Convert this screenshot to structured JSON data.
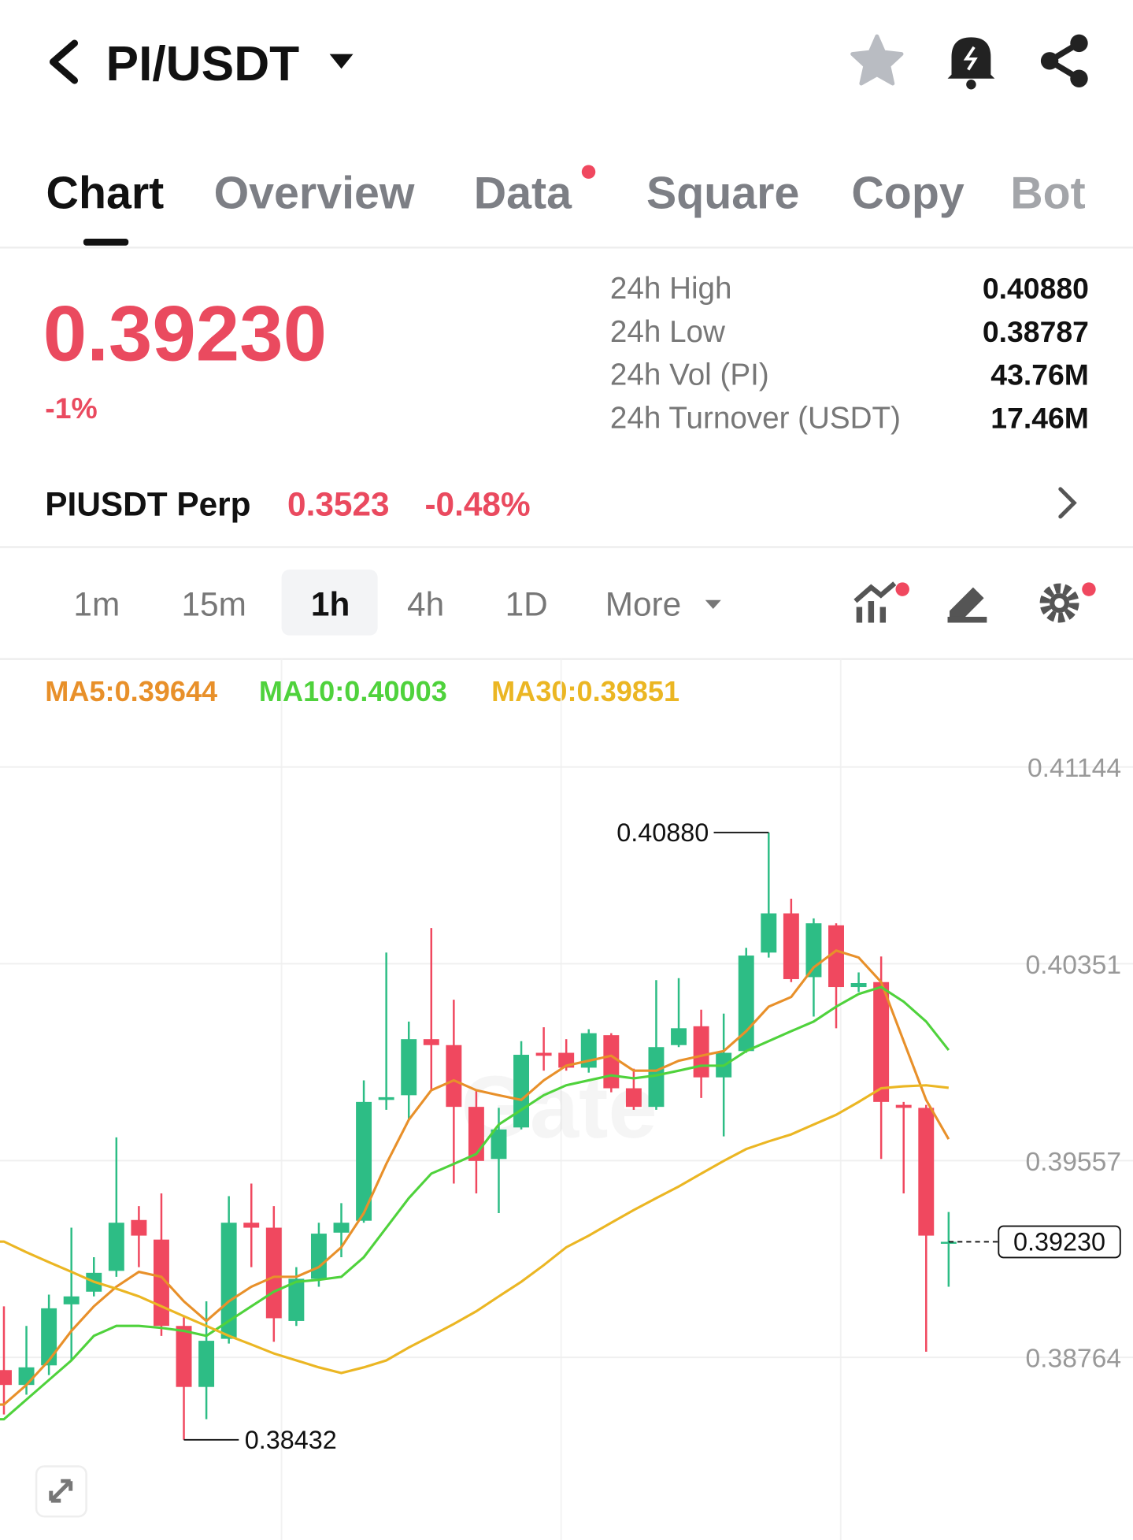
{
  "header": {
    "pair": "PI/USDT"
  },
  "tabs": [
    "Chart",
    "Overview",
    "Data",
    "Square",
    "Copy",
    "Bot"
  ],
  "ticker": {
    "price": "0.39230",
    "change": "-1%",
    "stats": [
      [
        "24h High",
        "0.40880"
      ],
      [
        "24h Low",
        "0.38787"
      ],
      [
        "24h Vol (PI)",
        "43.76M"
      ],
      [
        "24h Turnover (USDT)",
        "17.46M"
      ]
    ]
  },
  "perp": {
    "name": "PIUSDT Perp",
    "price": "0.3523",
    "change": "-0.48%"
  },
  "intervals": [
    "1m",
    "15m",
    "1h",
    "4h",
    "1D",
    "More"
  ],
  "watermark": "Gate",
  "chart_data": {
    "type": "candlestick",
    "open": [
      0.38713,
      0.38653,
      0.38732,
      0.38978,
      0.39029,
      0.39113,
      0.39318,
      0.39239,
      0.38891,
      0.38645,
      0.38839,
      0.39307,
      0.39287,
      0.38911,
      0.39081,
      0.39267,
      0.39315,
      0.39802,
      0.39821,
      0.40047,
      0.40023,
      0.39774,
      0.39564,
      0.39691,
      0.39992,
      0.39992,
      0.39932,
      0.40063,
      0.39849,
      0.39774,
      0.40023,
      0.40099,
      0.39893,
      0.39999,
      0.40396,
      0.40554,
      0.40297,
      0.40506,
      0.40257,
      0.40277,
      0.39782,
      0.3977,
      0.39228
    ],
    "high": [
      0.3897,
      0.38891,
      0.39017,
      0.39287,
      0.39168,
      0.39651,
      0.39374,
      0.39425,
      0.3893,
      0.3899,
      0.39414,
      0.39465,
      0.39374,
      0.39128,
      0.39307,
      0.39386,
      0.39881,
      0.40396,
      0.40118,
      0.40495,
      0.40206,
      0.39841,
      0.3977,
      0.40039,
      0.40095,
      0.40047,
      0.40087,
      0.40071,
      0.39928,
      0.40285,
      0.40293,
      0.40166,
      0.4015,
      0.40415,
      0.4088,
      0.40613,
      0.40534,
      0.40514,
      0.40316,
      0.4038,
      0.39794,
      0.39782,
      0.3935
    ],
    "low": [
      0.38534,
      0.38614,
      0.38693,
      0.38752,
      0.3901,
      0.39089,
      0.39128,
      0.38851,
      0.38432,
      0.38515,
      0.3882,
      0.39128,
      0.38827,
      0.38891,
      0.39049,
      0.39168,
      0.39307,
      0.39762,
      0.39722,
      0.39841,
      0.39465,
      0.39425,
      0.39346,
      0.39683,
      0.3992,
      0.3992,
      0.39912,
      0.39833,
      0.39762,
      0.39762,
      0.40015,
      0.3981,
      0.39655,
      0.39992,
      0.40376,
      0.40277,
      0.40138,
      0.40091,
      0.40237,
      0.39564,
      0.39425,
      0.38787,
      0.39049
    ],
    "close": [
      0.38653,
      0.38724,
      0.38962,
      0.3901,
      0.39105,
      0.39307,
      0.39255,
      0.38891,
      0.38645,
      0.38831,
      0.39307,
      0.39287,
      0.38922,
      0.39081,
      0.39263,
      0.39307,
      0.39794,
      0.39813,
      0.40047,
      0.40023,
      0.39774,
      0.39556,
      0.39683,
      0.39984,
      0.3998,
      0.39932,
      0.40071,
      0.39849,
      0.39774,
      0.40015,
      0.40091,
      0.39893,
      0.39992,
      0.40384,
      0.40554,
      0.40289,
      0.40514,
      0.40257,
      0.40273,
      0.39794,
      0.3977,
      0.39255,
      0.3923
    ],
    "up_color": "#2dbd85",
    "down_color": "#f0485f",
    "series": [
      {
        "name": "MA5:0.39644",
        "color": "#e8902a",
        "values": [
          0.38574,
          0.38653,
          0.38752,
          0.38871,
          0.3897,
          0.39049,
          0.39109,
          0.39089,
          0.3899,
          0.38911,
          0.3899,
          0.39049,
          0.39089,
          0.39089,
          0.39128,
          0.39208,
          0.39346,
          0.39544,
          0.39722,
          0.39841,
          0.39881,
          0.39841,
          0.39821,
          0.39802,
          0.39881,
          0.3994,
          0.3996,
          0.3998,
          0.3992,
          0.3992,
          0.3996,
          0.3998,
          0.39999,
          0.40079,
          0.40178,
          0.40217,
          0.40336,
          0.40404,
          0.40376,
          0.40277,
          0.40039,
          0.39802,
          0.39644
        ]
      },
      {
        "name": "MA10:0.40003",
        "color": "#4fd23c",
        "values": [
          0.38515,
          0.38594,
          0.38673,
          0.38752,
          0.38851,
          0.38891,
          0.38891,
          0.38883,
          0.38871,
          0.38851,
          0.38911,
          0.3897,
          0.39029,
          0.39069,
          0.39077,
          0.39089,
          0.39168,
          0.39287,
          0.39406,
          0.39505,
          0.39544,
          0.39584,
          0.39703,
          0.39762,
          0.39821,
          0.39861,
          0.39881,
          0.39901,
          0.39889,
          0.39901,
          0.3992,
          0.3994,
          0.3994,
          0.39999,
          0.40039,
          0.40079,
          0.40118,
          0.40178,
          0.40229,
          0.40257,
          0.40198,
          0.40118,
          0.40003
        ]
      },
      {
        "name": "MA30:0.39851",
        "color": "#ebb623",
        "values": [
          0.39231,
          0.39188,
          0.39148,
          0.39109,
          0.39069,
          0.39041,
          0.3901,
          0.3897,
          0.3893,
          0.38891,
          0.38851,
          0.38816,
          0.3878,
          0.38752,
          0.38724,
          0.38701,
          0.38724,
          0.38752,
          0.38804,
          0.38851,
          0.38899,
          0.3895,
          0.3901,
          0.39069,
          0.39136,
          0.39208,
          0.39255,
          0.39307,
          0.39358,
          0.39406,
          0.39453,
          0.39505,
          0.39556,
          0.39604,
          0.39635,
          0.39663,
          0.39703,
          0.39742,
          0.39794,
          0.39849,
          0.39857,
          0.39861,
          0.39851
        ]
      }
    ],
    "ylim": [
      0.38028,
      0.41227
    ],
    "yticks": [
      0.41144,
      0.40351,
      0.39557,
      0.38764
    ],
    "grid": true,
    "high_label": {
      "value": 0.4088,
      "label": "0.40880"
    },
    "low_label": {
      "value": 0.38432,
      "label": "0.38432"
    },
    "last_price": {
      "value": 0.3923,
      "label": "0.39230"
    }
  }
}
